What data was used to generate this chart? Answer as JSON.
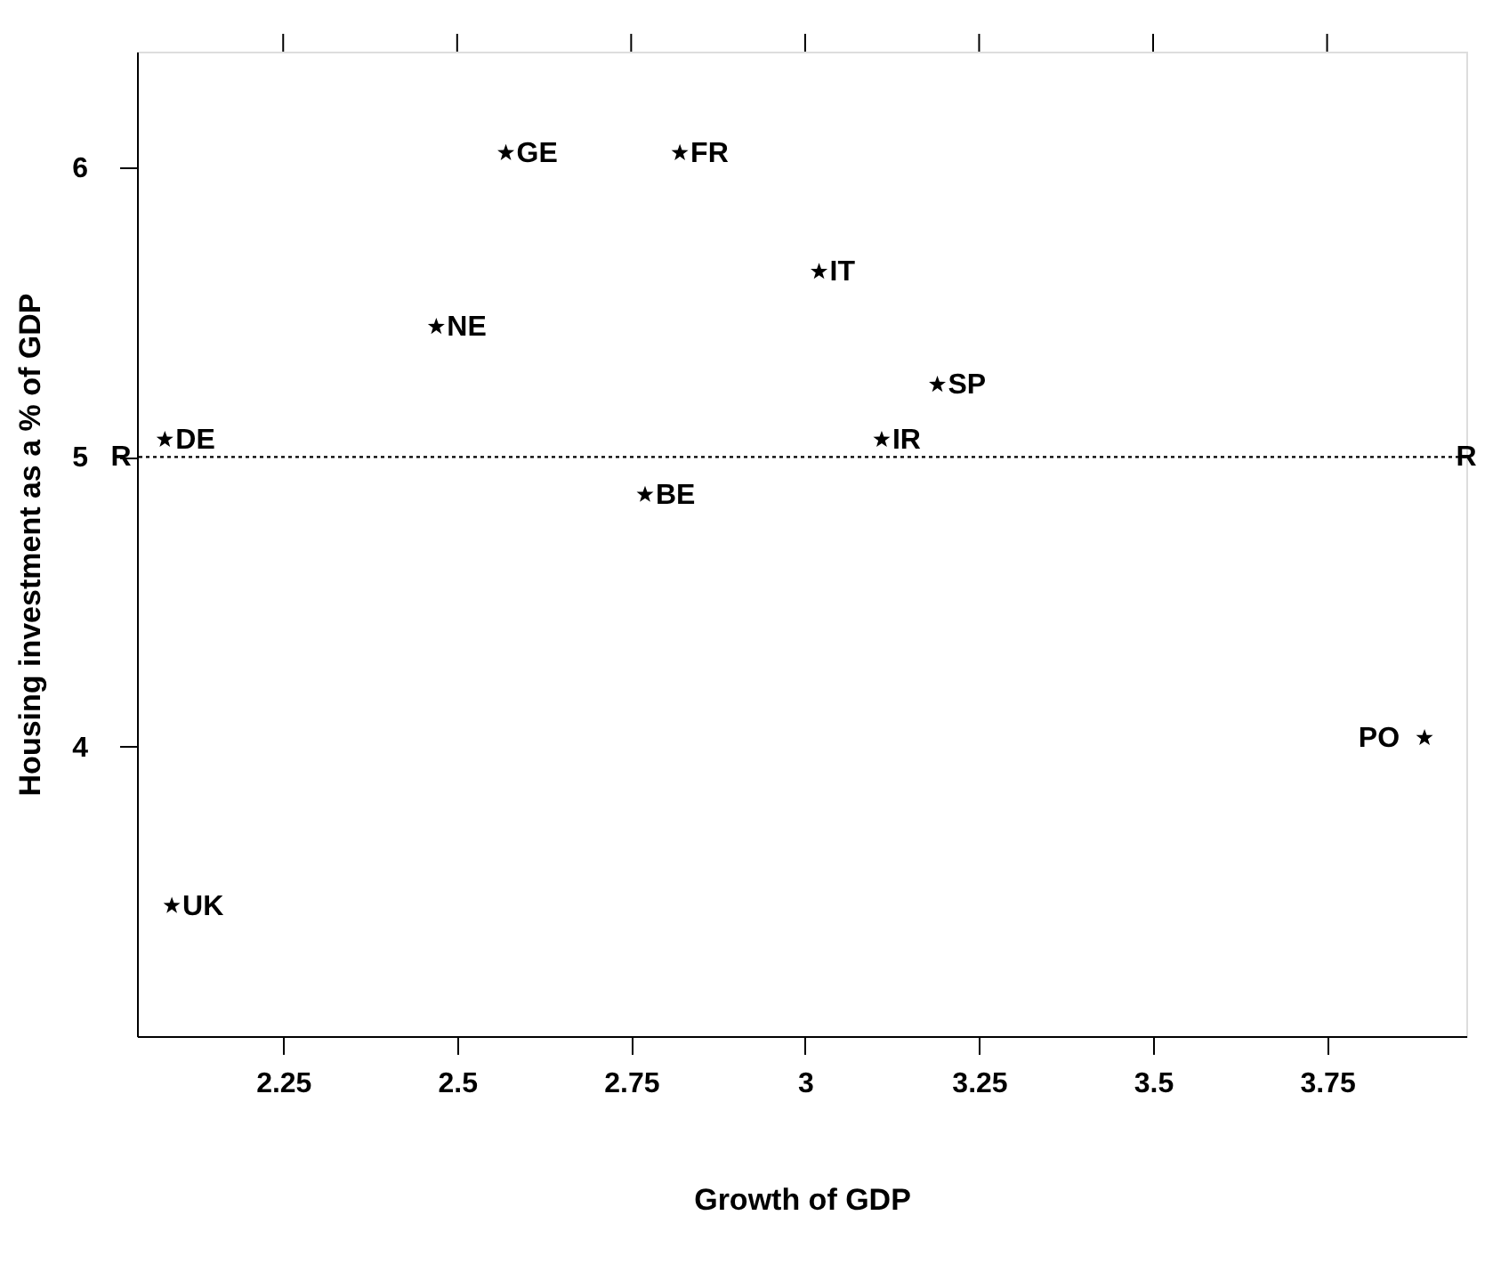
{
  "chart_data": {
    "type": "scatter",
    "xlabel": "Growth of GDP",
    "ylabel": "Housing investment as a % of GDP",
    "x": [
      2.57,
      2.82,
      3.02,
      2.47,
      3.19,
      2.08,
      3.11,
      2.77,
      3.89,
      2.09
    ],
    "series": [
      {
        "color": "#000000",
        "values": [
          6.05,
          6.05,
          5.64,
          5.45,
          5.25,
          5.06,
          5.06,
          4.87,
          4.03,
          3.45
        ]
      }
    ],
    "xlim": [
      2.04,
      3.95
    ],
    "xticks": [
      2.25,
      2.5,
      2.75,
      3,
      3.25,
      3.5,
      3.75
    ],
    "ylim": [
      3.0,
      6.4
    ],
    "yticks": [
      4,
      5,
      6
    ],
    "ref_lines": [
      {
        "axis": "y",
        "value": 5,
        "label": "R",
        "color": "#000000",
        "line_style": "dotted"
      }
    ],
    "annotations": [
      {
        "text": "GE",
        "x": 2.57,
        "y": 6.05
      },
      {
        "text": "FR",
        "x": 2.82,
        "y": 6.05
      },
      {
        "text": "IT",
        "x": 3.02,
        "y": 5.64
      },
      {
        "text": "NE",
        "x": 2.47,
        "y": 5.45
      },
      {
        "text": "SP",
        "x": 3.19,
        "y": 5.25
      },
      {
        "text": "DE",
        "x": 2.08,
        "y": 5.06
      },
      {
        "text": "IR",
        "x": 3.11,
        "y": 5.06
      },
      {
        "text": "BE",
        "x": 2.77,
        "y": 4.87
      },
      {
        "text": "PO",
        "x": 3.89,
        "y": 4.03
      },
      {
        "text": "UK",
        "x": 2.09,
        "y": 3.45
      }
    ],
    "marker": "star",
    "grid": false
  }
}
